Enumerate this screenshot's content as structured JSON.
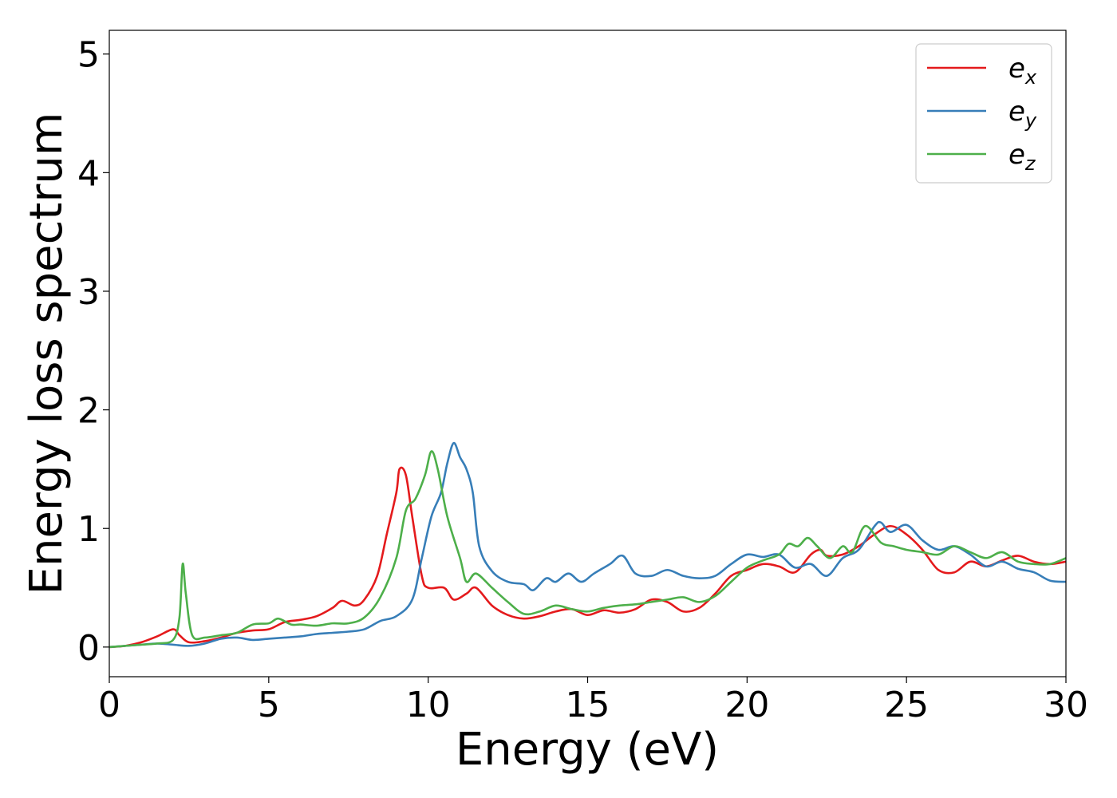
{
  "chart_data": {
    "type": "line",
    "title": "",
    "xlabel": "Energy (eV)",
    "ylabel": "Energy loss spectrum",
    "xlim": [
      0,
      30
    ],
    "ylim": [
      -0.25,
      5.2
    ],
    "xticks": [
      0,
      5,
      10,
      15,
      20,
      25,
      30
    ],
    "yticks": [
      0,
      1,
      2,
      3,
      4,
      5
    ],
    "grid": false,
    "legend_position": "top-right",
    "series": [
      {
        "name": "e",
        "subscript": "x",
        "color": "#e41a1c",
        "points": [
          [
            0,
            0
          ],
          [
            0.5,
            0.01
          ],
          [
            1,
            0.04
          ],
          [
            1.5,
            0.09
          ],
          [
            2,
            0.15
          ],
          [
            2.2,
            0.1
          ],
          [
            2.5,
            0.04
          ],
          [
            3,
            0.05
          ],
          [
            3.5,
            0.08
          ],
          [
            4,
            0.12
          ],
          [
            4.5,
            0.14
          ],
          [
            5,
            0.15
          ],
          [
            5.5,
            0.21
          ],
          [
            6,
            0.23
          ],
          [
            6.5,
            0.26
          ],
          [
            7,
            0.33
          ],
          [
            7.3,
            0.39
          ],
          [
            7.7,
            0.35
          ],
          [
            8,
            0.4
          ],
          [
            8.4,
            0.6
          ],
          [
            8.7,
            0.95
          ],
          [
            9,
            1.3
          ],
          [
            9.1,
            1.5
          ],
          [
            9.3,
            1.45
          ],
          [
            9.5,
            1.1
          ],
          [
            9.8,
            0.6
          ],
          [
            10,
            0.5
          ],
          [
            10.5,
            0.5
          ],
          [
            10.8,
            0.4
          ],
          [
            11.2,
            0.45
          ],
          [
            11.5,
            0.5
          ],
          [
            12,
            0.35
          ],
          [
            12.5,
            0.27
          ],
          [
            13,
            0.24
          ],
          [
            13.5,
            0.26
          ],
          [
            14,
            0.3
          ],
          [
            14.5,
            0.32
          ],
          [
            15,
            0.27
          ],
          [
            15.5,
            0.31
          ],
          [
            16,
            0.29
          ],
          [
            16.5,
            0.32
          ],
          [
            17,
            0.4
          ],
          [
            17.5,
            0.38
          ],
          [
            18,
            0.3
          ],
          [
            18.5,
            0.33
          ],
          [
            19,
            0.45
          ],
          [
            19.5,
            0.6
          ],
          [
            20,
            0.65
          ],
          [
            20.5,
            0.7
          ],
          [
            21,
            0.68
          ],
          [
            21.5,
            0.63
          ],
          [
            22,
            0.78
          ],
          [
            22.3,
            0.82
          ],
          [
            22.5,
            0.77
          ],
          [
            23,
            0.78
          ],
          [
            23.5,
            0.85
          ],
          [
            24,
            0.95
          ],
          [
            24.5,
            1.02
          ],
          [
            25,
            0.95
          ],
          [
            25.5,
            0.82
          ],
          [
            26,
            0.65
          ],
          [
            26.5,
            0.63
          ],
          [
            27,
            0.72
          ],
          [
            27.5,
            0.68
          ],
          [
            28,
            0.73
          ],
          [
            28.5,
            0.77
          ],
          [
            29,
            0.72
          ],
          [
            29.5,
            0.7
          ],
          [
            30,
            0.72
          ]
        ]
      },
      {
        "name": "e",
        "subscript": "y",
        "color": "#377eb8",
        "points": [
          [
            0,
            0
          ],
          [
            0.5,
            0.01
          ],
          [
            1,
            0.02
          ],
          [
            1.5,
            0.03
          ],
          [
            2,
            0.02
          ],
          [
            2.5,
            0.01
          ],
          [
            3,
            0.03
          ],
          [
            3.5,
            0.07
          ],
          [
            4,
            0.08
          ],
          [
            4.5,
            0.06
          ],
          [
            5,
            0.07
          ],
          [
            5.5,
            0.08
          ],
          [
            6,
            0.09
          ],
          [
            6.5,
            0.11
          ],
          [
            7,
            0.12
          ],
          [
            7.5,
            0.13
          ],
          [
            8,
            0.15
          ],
          [
            8.5,
            0.22
          ],
          [
            9,
            0.26
          ],
          [
            9.5,
            0.4
          ],
          [
            9.8,
            0.75
          ],
          [
            10.1,
            1.1
          ],
          [
            10.4,
            1.3
          ],
          [
            10.6,
            1.55
          ],
          [
            10.8,
            1.72
          ],
          [
            11,
            1.6
          ],
          [
            11.2,
            1.5
          ],
          [
            11.4,
            1.3
          ],
          [
            11.6,
            0.85
          ],
          [
            12,
            0.64
          ],
          [
            12.5,
            0.55
          ],
          [
            13,
            0.53
          ],
          [
            13.3,
            0.48
          ],
          [
            13.7,
            0.58
          ],
          [
            14,
            0.55
          ],
          [
            14.4,
            0.62
          ],
          [
            14.8,
            0.55
          ],
          [
            15.2,
            0.62
          ],
          [
            15.7,
            0.7
          ],
          [
            16.1,
            0.77
          ],
          [
            16.5,
            0.62
          ],
          [
            17,
            0.6
          ],
          [
            17.5,
            0.65
          ],
          [
            18,
            0.6
          ],
          [
            18.5,
            0.58
          ],
          [
            19,
            0.6
          ],
          [
            19.5,
            0.7
          ],
          [
            20,
            0.78
          ],
          [
            20.5,
            0.76
          ],
          [
            21,
            0.78
          ],
          [
            21.5,
            0.67
          ],
          [
            22,
            0.7
          ],
          [
            22.5,
            0.6
          ],
          [
            23,
            0.75
          ],
          [
            23.5,
            0.82
          ],
          [
            24,
            1.02
          ],
          [
            24.2,
            1.05
          ],
          [
            24.5,
            0.97
          ],
          [
            25,
            1.03
          ],
          [
            25.5,
            0.9
          ],
          [
            26,
            0.82
          ],
          [
            26.5,
            0.85
          ],
          [
            27,
            0.78
          ],
          [
            27.5,
            0.68
          ],
          [
            28,
            0.72
          ],
          [
            28.5,
            0.66
          ],
          [
            29,
            0.63
          ],
          [
            29.5,
            0.56
          ],
          [
            30,
            0.55
          ]
        ]
      },
      {
        "name": "e",
        "subscript": "z",
        "color": "#4daf4a",
        "points": [
          [
            0,
            0
          ],
          [
            0.5,
            0.01
          ],
          [
            1,
            0.02
          ],
          [
            1.5,
            0.03
          ],
          [
            2,
            0.06
          ],
          [
            2.2,
            0.25
          ],
          [
            2.3,
            0.7
          ],
          [
            2.4,
            0.45
          ],
          [
            2.6,
            0.1
          ],
          [
            3,
            0.08
          ],
          [
            3.5,
            0.1
          ],
          [
            4,
            0.12
          ],
          [
            4.5,
            0.19
          ],
          [
            5,
            0.2
          ],
          [
            5.3,
            0.24
          ],
          [
            5.7,
            0.19
          ],
          [
            6,
            0.19
          ],
          [
            6.5,
            0.18
          ],
          [
            7,
            0.2
          ],
          [
            7.5,
            0.2
          ],
          [
            8,
            0.25
          ],
          [
            8.5,
            0.42
          ],
          [
            9,
            0.75
          ],
          [
            9.3,
            1.15
          ],
          [
            9.6,
            1.25
          ],
          [
            9.9,
            1.45
          ],
          [
            10.1,
            1.65
          ],
          [
            10.3,
            1.5
          ],
          [
            10.6,
            1.1
          ],
          [
            11,
            0.75
          ],
          [
            11.2,
            0.55
          ],
          [
            11.5,
            0.62
          ],
          [
            12,
            0.5
          ],
          [
            12.5,
            0.38
          ],
          [
            13,
            0.28
          ],
          [
            13.5,
            0.3
          ],
          [
            14,
            0.35
          ],
          [
            14.5,
            0.32
          ],
          [
            15,
            0.3
          ],
          [
            15.5,
            0.33
          ],
          [
            16,
            0.35
          ],
          [
            16.5,
            0.36
          ],
          [
            17,
            0.38
          ],
          [
            17.5,
            0.4
          ],
          [
            18,
            0.42
          ],
          [
            18.5,
            0.38
          ],
          [
            19,
            0.43
          ],
          [
            19.5,
            0.55
          ],
          [
            20,
            0.67
          ],
          [
            20.5,
            0.73
          ],
          [
            21,
            0.78
          ],
          [
            21.3,
            0.87
          ],
          [
            21.6,
            0.85
          ],
          [
            21.9,
            0.92
          ],
          [
            22.2,
            0.85
          ],
          [
            22.6,
            0.75
          ],
          [
            23,
            0.85
          ],
          [
            23.3,
            0.8
          ],
          [
            23.7,
            1.02
          ],
          [
            24.2,
            0.88
          ],
          [
            24.6,
            0.85
          ],
          [
            25,
            0.82
          ],
          [
            25.5,
            0.8
          ],
          [
            26,
            0.78
          ],
          [
            26.5,
            0.85
          ],
          [
            27,
            0.8
          ],
          [
            27.5,
            0.75
          ],
          [
            28,
            0.8
          ],
          [
            28.5,
            0.72
          ],
          [
            29,
            0.7
          ],
          [
            29.5,
            0.7
          ],
          [
            30,
            0.75
          ]
        ]
      }
    ]
  }
}
